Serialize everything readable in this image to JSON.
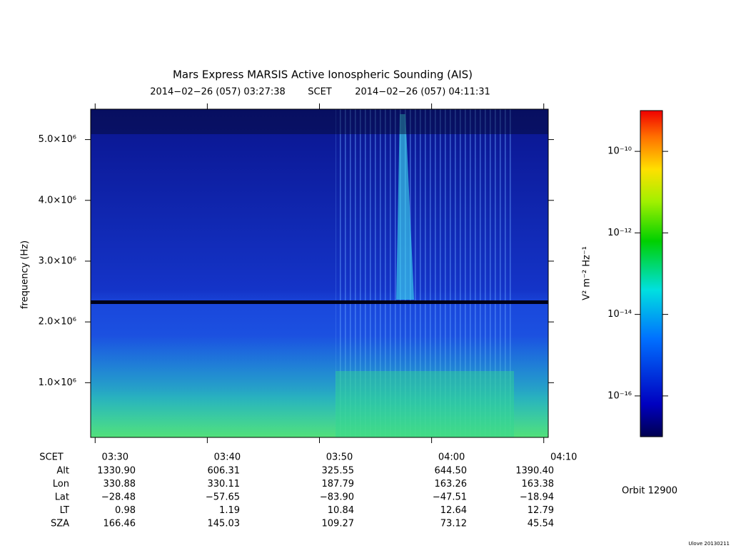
{
  "chart_data": {
    "type": "spectrogram",
    "title": "Mars Express MARSIS Active Ionospheric Sounding (AIS)",
    "subtitle": {
      "start": "2014−02−26 (057) 03:27:38",
      "frame": "SCET",
      "end": "2014−02−26 (057) 04:11:31"
    },
    "y_label": "frequency (Hz)",
    "ylim": [
      100000,
      5500000
    ],
    "yticks": [
      {
        "value": 1000000,
        "label": "1.0×10⁶"
      },
      {
        "value": 2000000,
        "label": "2.0×10⁶"
      },
      {
        "value": 3000000,
        "label": "3.0×10⁶"
      },
      {
        "value": 4000000,
        "label": "4.0×10⁶"
      },
      {
        "value": 5000000,
        "label": "5.0×10⁶"
      }
    ],
    "xlim": [
      209.6,
      250.4
    ],
    "xticks": [
      {
        "value": 210,
        "label": "03:30"
      },
      {
        "value": 220,
        "label": "03:40"
      },
      {
        "value": 230,
        "label": "03:50"
      },
      {
        "value": 240,
        "label": "04:00"
      },
      {
        "value": 250,
        "label": "04:10"
      }
    ],
    "colorbar": {
      "label": "V² m⁻² Hz⁻¹",
      "scale": "log",
      "lim": [
        1e-17,
        1e-09
      ],
      "ticks": [
        {
          "value": 1e-10,
          "label": "10⁻¹⁰"
        },
        {
          "value": 1e-12,
          "label": "10⁻¹²"
        },
        {
          "value": 1e-14,
          "label": "10⁻¹⁴"
        },
        {
          "value": 1e-16,
          "label": "10⁻¹⁶"
        }
      ]
    }
  },
  "ephemeris": {
    "x_row_label": "SCET",
    "rows": [
      {
        "label": "Alt",
        "values": [
          "1330.90",
          "606.31",
          "325.55",
          "644.50",
          "1390.40"
        ]
      },
      {
        "label": "Lon",
        "values": [
          "330.88",
          "330.11",
          "187.79",
          "163.26",
          "163.38"
        ]
      },
      {
        "label": "Lat",
        "values": [
          "−28.48",
          "−57.65",
          "−83.90",
          "−47.51",
          "−18.94"
        ]
      },
      {
        "label": "LT",
        "values": [
          "0.98",
          "1.19",
          "10.84",
          "12.64",
          "12.79"
        ]
      },
      {
        "label": "SZA",
        "values": [
          "166.46",
          "145.03",
          "109.27",
          "73.12",
          "45.54"
        ]
      }
    ]
  },
  "orbit": "Orbit 12900",
  "version": "Ulove 20130211"
}
